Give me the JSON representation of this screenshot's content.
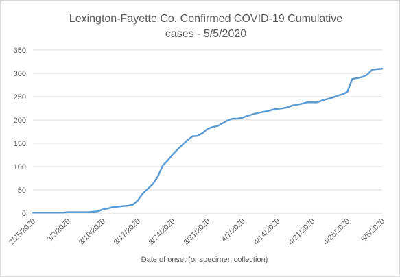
{
  "chart_data": {
    "type": "line",
    "title": [
      "Lexington-Fayette Co. Confirmed COVID-19 Cumulative",
      "cases - 5/5/2020"
    ],
    "x_label": "Date of onset (or specimen collection)",
    "categories": [
      "2/25/2020",
      null,
      null,
      null,
      null,
      null,
      null,
      "3/3/2020",
      null,
      null,
      null,
      null,
      null,
      null,
      "3/10/2020",
      null,
      null,
      null,
      null,
      null,
      null,
      "3/17/2020",
      null,
      null,
      null,
      null,
      null,
      null,
      "3/24/2020",
      null,
      null,
      null,
      null,
      null,
      null,
      "3/31/2020",
      null,
      null,
      null,
      null,
      null,
      null,
      "4/7/2020",
      null,
      null,
      null,
      null,
      null,
      null,
      "4/14/2020",
      null,
      null,
      null,
      null,
      null,
      null,
      "4/21/2020",
      null,
      null,
      null,
      null,
      null,
      null,
      "4/28/2020",
      null,
      null,
      null,
      null,
      null,
      null,
      "5/5/2020"
    ],
    "series": [
      {
        "name": "Cumulative cases",
        "color": "#5b9bd5",
        "values": [
          1,
          1,
          1,
          1,
          1,
          1,
          1,
          2,
          2,
          2,
          2,
          2,
          3,
          4,
          8,
          10,
          13,
          14,
          15,
          16,
          18,
          27,
          42,
          52,
          62,
          78,
          102,
          113,
          126,
          137,
          147,
          157,
          165,
          166,
          172,
          181,
          185,
          187,
          193,
          199,
          203,
          203,
          205,
          209,
          212,
          215,
          217,
          219,
          222,
          224,
          225,
          227,
          231,
          233,
          235,
          238,
          238,
          238,
          242,
          245,
          248,
          252,
          255,
          260,
          288,
          290,
          292,
          297,
          308,
          309,
          310
        ]
      }
    ],
    "ylim": [
      0,
      350
    ],
    "yticks": [
      0,
      50,
      100,
      150,
      200,
      250,
      300,
      350
    ],
    "grid": true
  }
}
